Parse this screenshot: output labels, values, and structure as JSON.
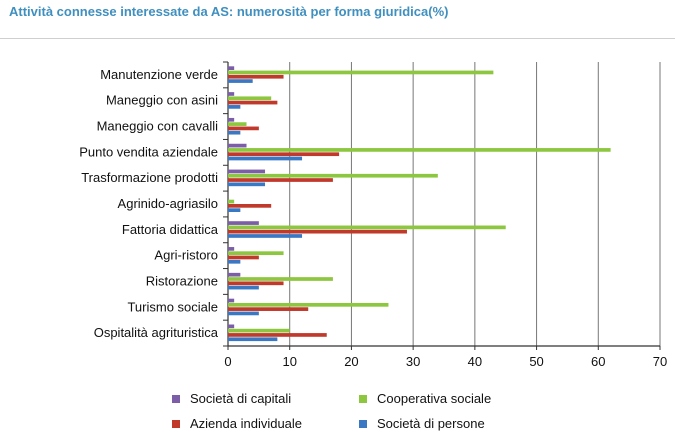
{
  "title": "Attività connesse interessate da AS: numerosità per forma giuridica(%)",
  "chart_data": {
    "type": "bar",
    "orientation": "horizontal",
    "categories": [
      "Manutenzione verde",
      "Maneggio con asini",
      "Maneggio con cavalli",
      "Punto vendita aziendale",
      "Trasformazione prodotti",
      "Agrinido-agriasilo",
      "Fattoria didattica",
      "Agri-ristoro",
      "Ristorazione",
      "Turismo sociale",
      "Ospitalità agrituristica"
    ],
    "series": [
      {
        "name": "Società di capitali",
        "color": "#7b5ea7",
        "values": [
          1,
          1,
          1,
          3,
          6,
          0,
          5,
          1,
          2,
          1,
          1
        ]
      },
      {
        "name": "Cooperativa sociale",
        "color": "#8dc63f",
        "values": [
          43,
          7,
          3,
          62,
          34,
          1,
          45,
          9,
          17,
          26,
          10
        ]
      },
      {
        "name": "Azienda individuale",
        "color": "#c0392b",
        "values": [
          9,
          8,
          5,
          18,
          17,
          7,
          29,
          5,
          9,
          13,
          16
        ]
      },
      {
        "name": "Società di persone",
        "color": "#3a78c4",
        "values": [
          4,
          2,
          2,
          12,
          6,
          2,
          12,
          2,
          5,
          5,
          8
        ]
      }
    ],
    "xlim": [
      0,
      70
    ],
    "xticks": [
      0,
      10,
      20,
      30,
      40,
      50,
      60,
      70
    ],
    "grid": "vertical",
    "legend_position": "bottom"
  },
  "legend": [
    {
      "label": "Società di capitali",
      "color": "#7b5ea7"
    },
    {
      "label": "Cooperativa sociale",
      "color": "#8dc63f"
    },
    {
      "label": "Azienda individuale",
      "color": "#c0392b"
    },
    {
      "label": "Società di persone",
      "color": "#3a78c4"
    }
  ]
}
